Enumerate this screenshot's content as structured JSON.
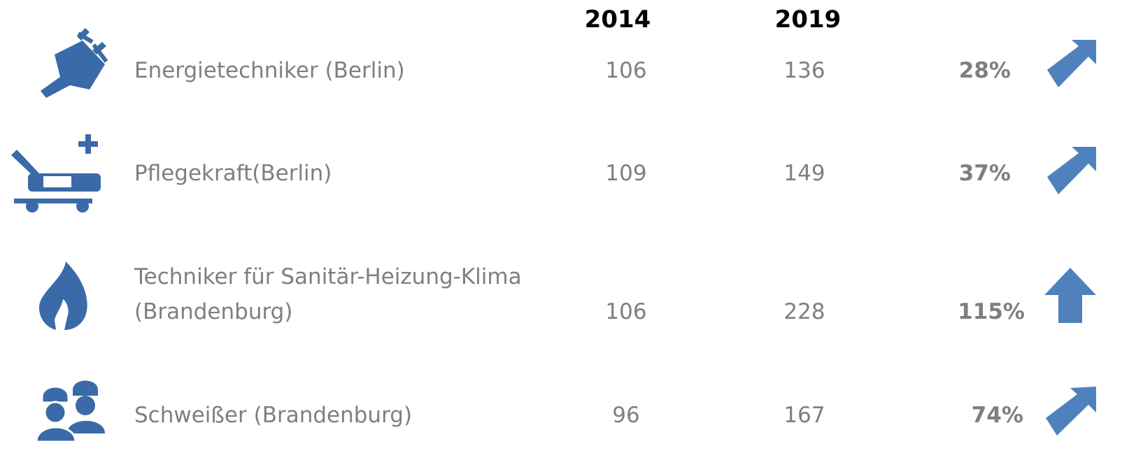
{
  "header": {
    "col_2014": "2014",
    "col_2019": "2019"
  },
  "rows": [
    {
      "label": [
        "Energietechniker (Berlin)"
      ],
      "v2014": "106",
      "v2019": "136",
      "change": "28%"
    },
    {
      "label": [
        "Pflegekraft(Berlin)"
      ],
      "v2014": "109",
      "v2019": "149",
      "change": "37%"
    },
    {
      "label": [
        "Techniker für Sanitär-Heizung-Klima",
        "(Brandenburg)"
      ],
      "v2014": "106",
      "v2019": "228",
      "change": "115%"
    },
    {
      "label": [
        "Schweißer (Brandenburg)"
      ],
      "v2014": "96",
      "v2019": "167",
      "change": "74%"
    }
  ]
}
